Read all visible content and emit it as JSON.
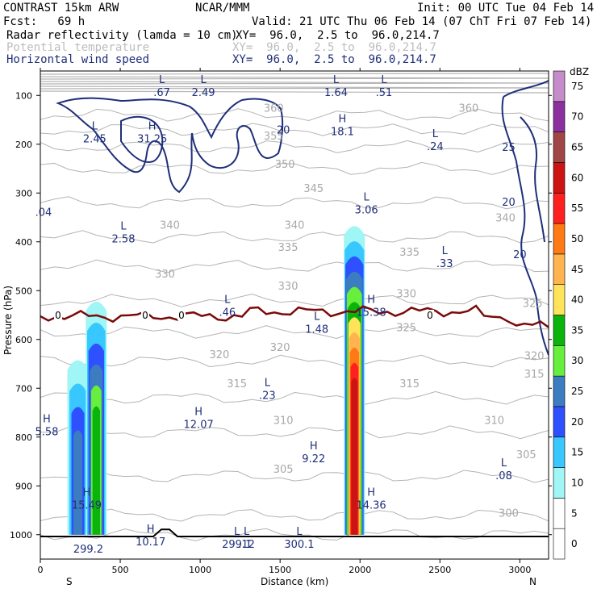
{
  "header": {
    "model": "CONTRAST 15km ARW",
    "org": "NCAR/MMM",
    "init": "Init: 00 UTC Tue 04 Feb 14",
    "fcst": "Fcst:   69 h",
    "valid": "Valid: 21 UTC Thu 06 Feb 14 (07 ChT Fri 07 Feb 14)",
    "field1": "Radar reflectivity (lamda = 10 cm)",
    "field1_xy": "XY=  96.0,  2.5 to  96.0,214.7",
    "field2": "Potential temperature",
    "field2_xy": "XY=  96.0,  2.5 to  96.0,214.7",
    "field3": "Horizontal wind speed",
    "field3_xy": "XY=  96.0,  2.5 to  96.0,214.7"
  },
  "chart_data": {
    "type": "cross-section",
    "xlabel": "Distance (km)",
    "ylabel": "Pressure (hPa)",
    "xlim": [
      0,
      3180
    ],
    "ylim": [
      1050,
      50
    ],
    "x_ticks": [
      0,
      500,
      1000,
      1500,
      2000,
      2500,
      3000
    ],
    "y_ticks": [
      100,
      200,
      300,
      400,
      500,
      600,
      700,
      800,
      900,
      1000
    ],
    "x_end_labels": {
      "left": "S",
      "right": "N"
    },
    "colorbar": {
      "unit": "dBZ",
      "levels": [
        0,
        5,
        10,
        15,
        20,
        25,
        30,
        35,
        40,
        45,
        50,
        55,
        60,
        65,
        70,
        75
      ],
      "colors": [
        "#ffffff",
        "#ffffff",
        "#a0f5f5",
        "#38c8ff",
        "#2e50ff",
        "#3c7cc0",
        "#66ef3c",
        "#0ab40a",
        "#ffe45a",
        "#ffb450",
        "#ff7a14",
        "#ff2020",
        "#cc1414",
        "#a04646",
        "#8c30a0",
        "#c48cc8"
      ]
    },
    "reflectivity_cells": [
      {
        "x": 235,
        "top_p": 630,
        "base_p": 1000,
        "max_dbz": 20
      },
      {
        "x": 350,
        "top_p": 510,
        "base_p": 1000,
        "max_dbz": 30
      },
      {
        "x": 1965,
        "top_p": 355,
        "base_p": 1000,
        "max_dbz": 55
      }
    ],
    "theta_labels": [
      {
        "x": 2680,
        "p": 125,
        "t": "360"
      },
      {
        "x": 1460,
        "p": 125,
        "t": "360"
      },
      {
        "x": 1460,
        "p": 182,
        "t": "355"
      },
      {
        "x": 1530,
        "p": 240,
        "t": "350"
      },
      {
        "x": 1710,
        "p": 290,
        "t": "345"
      },
      {
        "x": 810,
        "p": 365,
        "t": "340"
      },
      {
        "x": 1590,
        "p": 365,
        "t": "340"
      },
      {
        "x": 2910,
        "p": 350,
        "t": "340"
      },
      {
        "x": 1550,
        "p": 410,
        "t": "335"
      },
      {
        "x": 2310,
        "p": 420,
        "t": "335"
      },
      {
        "x": 1550,
        "p": 490,
        "t": "330"
      },
      {
        "x": 780,
        "p": 465,
        "t": "330"
      },
      {
        "x": 2290,
        "p": 505,
        "t": "330"
      },
      {
        "x": 3080,
        "p": 525,
        "t": "325"
      },
      {
        "x": 2290,
        "p": 575,
        "t": "325"
      },
      {
        "x": 1120,
        "p": 630,
        "t": "320"
      },
      {
        "x": 1500,
        "p": 615,
        "t": "320"
      },
      {
        "x": 3090,
        "p": 633,
        "t": "320"
      },
      {
        "x": 1230,
        "p": 690,
        "t": "315"
      },
      {
        "x": 2310,
        "p": 690,
        "t": "315"
      },
      {
        "x": 3090,
        "p": 670,
        "t": "315"
      },
      {
        "x": 1520,
        "p": 765,
        "t": "310"
      },
      {
        "x": 2840,
        "p": 765,
        "t": "310"
      },
      {
        "x": 1520,
        "p": 865,
        "t": "305"
      },
      {
        "x": 3040,
        "p": 835,
        "t": "305"
      },
      {
        "x": 2930,
        "p": 955,
        "t": "300"
      }
    ],
    "wind_labels": [
      {
        "x": 1520,
        "p": 170,
        "t": "20"
      },
      {
        "x": 2930,
        "p": 205,
        "t": "25"
      },
      {
        "x": 2930,
        "p": 318,
        "t": "20"
      },
      {
        "x": 3000,
        "p": 425,
        "t": "20"
      }
    ],
    "extrema": [
      {
        "x": 760,
        "p": 90,
        "k": "L",
        "v": ".67"
      },
      {
        "x": 1020,
        "p": 90,
        "k": "L",
        "v": "2.49"
      },
      {
        "x": 1850,
        "p": 90,
        "k": "L",
        "v": "1.64"
      },
      {
        "x": 2150,
        "p": 90,
        "k": "L",
        "v": ".51"
      },
      {
        "x": 340,
        "p": 185,
        "k": "L",
        "v": "2.45"
      },
      {
        "x": 700,
        "p": 185,
        "k": "H",
        "v": "31.25"
      },
      {
        "x": 1890,
        "p": 170,
        "k": "H",
        "v": "18.1"
      },
      {
        "x": 2470,
        "p": 200,
        "k": "L",
        "v": ".24"
      },
      {
        "x": 20,
        "p": 335,
        "k": "",
        "v": ".04"
      },
      {
        "x": 2040,
        "p": 330,
        "k": "L",
        "v": "3.06"
      },
      {
        "x": 520,
        "p": 390,
        "k": "L",
        "v": "2.58"
      },
      {
        "x": 2530,
        "p": 440,
        "k": "L",
        "v": ".33"
      },
      {
        "x": 1170,
        "p": 540,
        "k": "L",
        "v": ".46"
      },
      {
        "x": 2070,
        "p": 540,
        "k": "H",
        "v": "15.38"
      },
      {
        "x": 1730,
        "p": 575,
        "k": "L",
        "v": "1.48"
      },
      {
        "x": 1420,
        "p": 710,
        "k": "L",
        "v": ".23"
      },
      {
        "x": 990,
        "p": 770,
        "k": "H",
        "v": "12.07"
      },
      {
        "x": 40,
        "p": 785,
        "k": "H",
        "v": "5.58"
      },
      {
        "x": 1710,
        "p": 840,
        "k": "H",
        "v": "9.22"
      },
      {
        "x": 2900,
        "p": 875,
        "k": "L",
        "v": ".08"
      },
      {
        "x": 290,
        "p": 935,
        "k": "H",
        "v": "15.49"
      },
      {
        "x": 2070,
        "p": 935,
        "k": "H",
        "v": "14.36"
      },
      {
        "x": 690,
        "p": 1010,
        "k": "H",
        "v": "10.17"
      },
      {
        "x": 1230,
        "p": 1015,
        "k": "L",
        "v": "299.1"
      },
      {
        "x": 1290,
        "p": 1015,
        "k": "L",
        "v": ".12"
      },
      {
        "x": 1620,
        "p": 1015,
        "k": "L",
        "v": "300.1"
      },
      {
        "x": 300,
        "p": 1025,
        "k": "",
        "v": "299.2"
      }
    ],
    "zero_line_label": "0"
  }
}
